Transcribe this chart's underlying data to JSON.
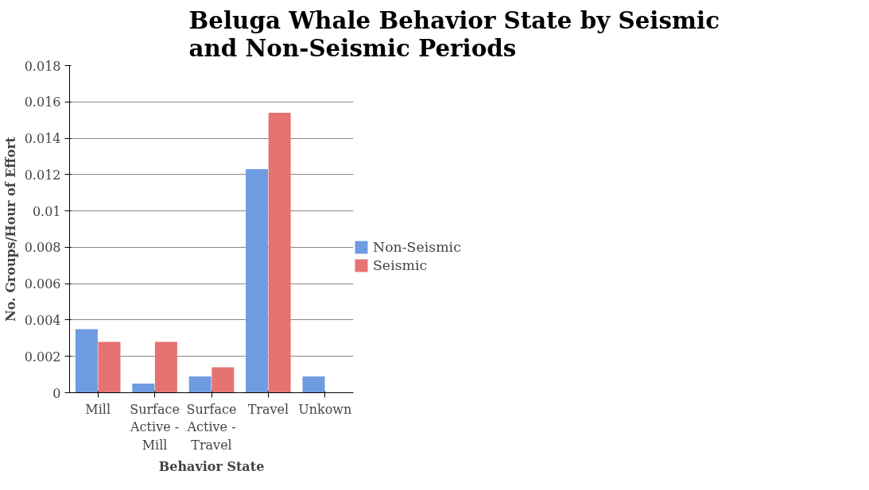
{
  "chart_data": {
    "type": "bar",
    "title": "Beluga Whale Behavior State by Seismic and Non-Seismic Periods",
    "xlabel": "Behavior State",
    "ylabel": "No. Groups/Hour of Effort",
    "categories": [
      "Mill",
      "Surface Active - Mill",
      "Surface Active - Travel",
      "Travel",
      "Unkown"
    ],
    "series": [
      {
        "name": "Non-Seismic",
        "color": "#6f9ce0",
        "values": [
          0.0035,
          0.0005,
          0.0009,
          0.0123,
          0.0009
        ]
      },
      {
        "name": "Seismic",
        "color": "#e57372",
        "values": [
          0.0028,
          0.0028,
          0.0014,
          0.0154,
          0
        ]
      }
    ],
    "ylim": [
      0,
      0.018
    ],
    "yticks": [
      0,
      0.002,
      0.004,
      0.006,
      0.008,
      0.01,
      0.012,
      0.014,
      0.016,
      0.018
    ],
    "grid": "y",
    "legend": "right"
  }
}
